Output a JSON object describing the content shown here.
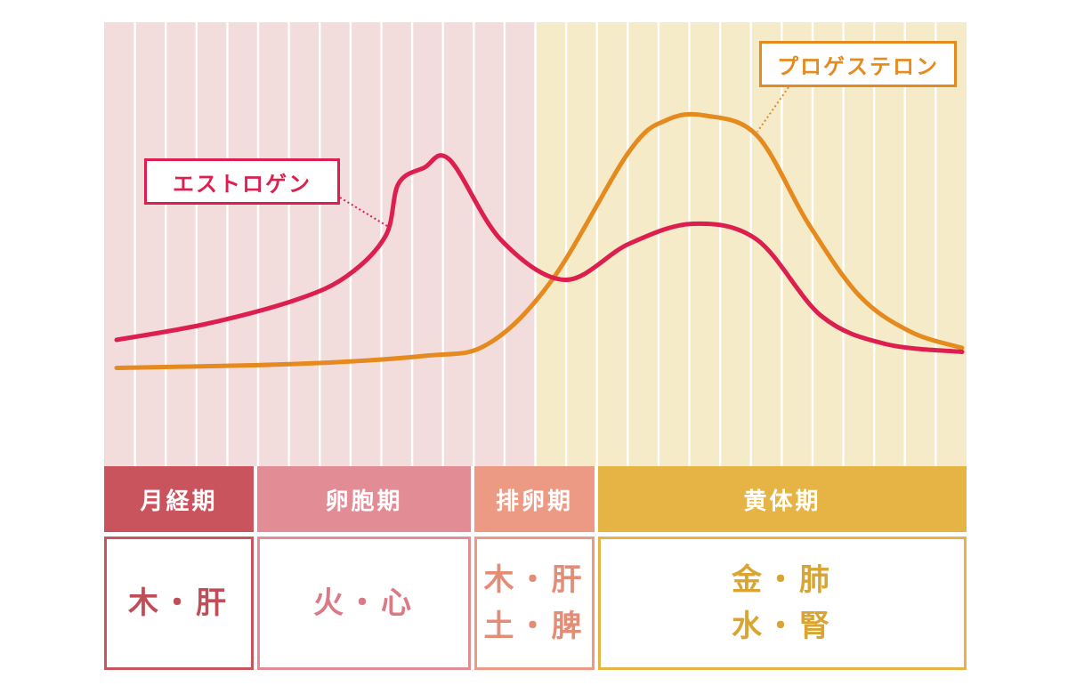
{
  "chart_data": {
    "type": "line",
    "title": "",
    "xlabel": "",
    "ylabel": "",
    "series": [
      {
        "name": "エストロゲン",
        "color": "#DC1F4E",
        "points": [
          [
            0,
            0.24
          ],
          [
            7,
            0.28
          ],
          [
            14,
            0.34
          ],
          [
            18,
            0.4
          ],
          [
            21,
            0.5
          ],
          [
            22,
            0.63
          ],
          [
            24,
            0.67
          ],
          [
            26,
            0.69
          ],
          [
            30,
            0.49
          ],
          [
            35,
            0.39
          ],
          [
            40,
            0.48
          ],
          [
            45,
            0.53
          ],
          [
            50,
            0.49
          ],
          [
            55,
            0.3
          ],
          [
            60,
            0.23
          ],
          [
            66,
            0.21
          ]
        ]
      },
      {
        "name": "プロゲステロン",
        "color": "#E58A1F",
        "points": [
          [
            0,
            0.17
          ],
          [
            14,
            0.18
          ],
          [
            24,
            0.2
          ],
          [
            29,
            0.23
          ],
          [
            34,
            0.39
          ],
          [
            40,
            0.71
          ],
          [
            43,
            0.79
          ],
          [
            46,
            0.8
          ],
          [
            50,
            0.75
          ],
          [
            54,
            0.53
          ],
          [
            58,
            0.35
          ],
          [
            62,
            0.26
          ],
          [
            66,
            0.22
          ]
        ]
      }
    ]
  },
  "phases": [
    {
      "label": "月経期",
      "organs": [
        "木・肝"
      ],
      "header_color": "#C9545E",
      "border_color": "#C9545E",
      "text_color": "#C04D58"
    },
    {
      "label": "卵胞期",
      "organs": [
        "火・心"
      ],
      "header_color": "#E28C95",
      "border_color": "#E28C95",
      "text_color": "#D97A86"
    },
    {
      "label": "排卵期",
      "organs": [
        "木・肝",
        "土・脾"
      ],
      "header_color": "#EC9A84",
      "border_color": "#EC9A84",
      "text_color": "#E38D76"
    },
    {
      "label": "黄体期",
      "organs": [
        "金・肺",
        "水・腎"
      ],
      "header_color": "#E5B444",
      "border_color": "#E5B444",
      "text_color": "#D9A432"
    }
  ],
  "colors": {
    "pink_band": "#F3DCDC",
    "yellow_band": "#F6EBC8",
    "stripe": "#FFFFFF"
  }
}
